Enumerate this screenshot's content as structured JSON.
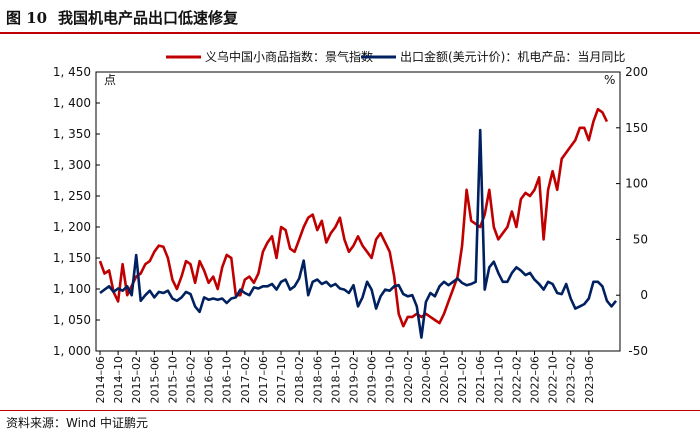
{
  "header": {
    "figure_number": "图 10",
    "title": "我国机电产品出口低速修复"
  },
  "source": {
    "text": "资料来源：Wind    中证鹏元"
  },
  "chart_data": {
    "type": "line",
    "title": "我国机电产品出口低速修复",
    "legend_position": "top",
    "left_axis": {
      "unit": "点",
      "min": 1000,
      "max": 1450,
      "step": 50,
      "tick_labels": [
        "1, 000",
        "1, 050",
        "1, 100",
        "1, 150",
        "1, 200",
        "1, 250",
        "1, 300",
        "1, 350",
        "1, 400",
        "1, 450"
      ]
    },
    "right_axis": {
      "unit": "%",
      "min": -50,
      "max": 200,
      "step": 50,
      "tick_labels": [
        "-50",
        "0",
        "50",
        "100",
        "150",
        "200"
      ]
    },
    "x_start": "2014-06",
    "x_tick_labels": [
      "2014–06",
      "2014–10",
      "2015–02",
      "2015–06",
      "2015–10",
      "2016–02",
      "2016–06",
      "2016–10",
      "2017–02",
      "2017–06",
      "2017–10",
      "2018–02",
      "2018–06",
      "2018–10",
      "2019–02",
      "2019–06",
      "2019–10",
      "2020–02",
      "2020–06",
      "2020–10",
      "2021–02",
      "2021–06",
      "2021–10",
      "2022–02",
      "2022–06",
      "2022–10",
      "2023–02",
      "2023–06"
    ],
    "series": [
      {
        "name": "义乌中国小商品指数：景气指数",
        "color": "#c00000",
        "axis": "left",
        "values": [
          1145,
          1125,
          1130,
          1095,
          1080,
          1140,
          1090,
          1105,
          1120,
          1125,
          1140,
          1145,
          1160,
          1170,
          1168,
          1150,
          1115,
          1100,
          1120,
          1145,
          1140,
          1110,
          1145,
          1130,
          1110,
          1120,
          1100,
          1135,
          1155,
          1150,
          1090,
          1090,
          1115,
          1120,
          1110,
          1125,
          1160,
          1175,
          1185,
          1150,
          1200,
          1195,
          1165,
          1160,
          1180,
          1200,
          1215,
          1220,
          1195,
          1210,
          1175,
          1190,
          1200,
          1215,
          1180,
          1160,
          1170,
          1185,
          1170,
          1160,
          1150,
          1180,
          1190,
          1175,
          1160,
          1120,
          1060,
          1040,
          1055,
          1055,
          1060,
          1055,
          1060,
          1055,
          1050,
          1045,
          1060,
          1080,
          1100,
          1120,
          1170,
          1260,
          1210,
          1205,
          1200,
          1220,
          1260,
          1200,
          1180,
          1190,
          1200,
          1225,
          1200,
          1245,
          1255,
          1250,
          1260,
          1280,
          1180,
          1260,
          1290,
          1260,
          1310,
          1320,
          1330,
          1340,
          1360,
          1360,
          1340,
          1370,
          1390,
          1385,
          1370
        ]
      },
      {
        "name": "出口金额(美元计价)：机电产品：当月同比",
        "color": "#002060",
        "axis": "right",
        "values": [
          2,
          5,
          8,
          3,
          6,
          4,
          8,
          0,
          36,
          -5,
          0,
          4,
          -2,
          3,
          2,
          4,
          -3,
          -5,
          -2,
          3,
          1,
          -10,
          -15,
          -2,
          -4,
          -3,
          -4,
          -3,
          -7,
          -3,
          -2,
          5,
          2,
          0,
          7,
          6,
          8,
          8,
          10,
          5,
          12,
          14,
          5,
          8,
          15,
          31,
          0,
          12,
          14,
          10,
          12,
          8,
          10,
          6,
          5,
          2,
          9,
          -10,
          -2,
          12,
          5,
          -12,
          -1,
          5,
          4,
          8,
          9,
          1,
          -1,
          0,
          -10,
          -38,
          -6,
          2,
          -1,
          8,
          12,
          9,
          12,
          15,
          11,
          9,
          10,
          12,
          148,
          5,
          25,
          30,
          20,
          12,
          12,
          20,
          25,
          22,
          18,
          20,
          14,
          10,
          5,
          12,
          10,
          2,
          1,
          10,
          -3,
          -12,
          -10,
          -8,
          -3,
          12,
          12,
          8,
          -5,
          -10,
          -5
        ]
      }
    ]
  }
}
